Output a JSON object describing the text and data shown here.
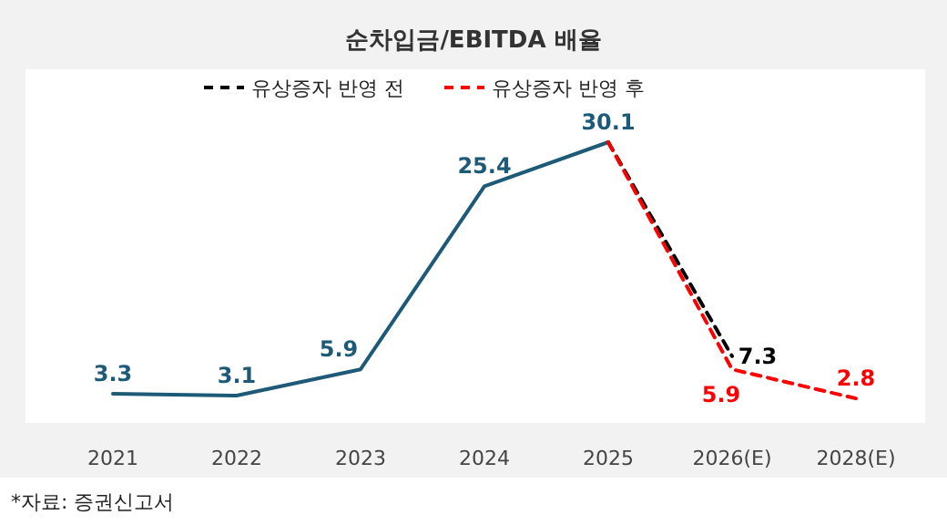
{
  "chart_data": {
    "type": "line",
    "title": "순차입금/EBITDA 배율",
    "categories": [
      "2021",
      "2022",
      "2023",
      "2024",
      "2025",
      "2026(E)",
      "2028(E)"
    ],
    "series": [
      {
        "color": "#1d5a78",
        "line_style": "solid",
        "values": [
          3.3,
          3.1,
          5.9,
          25.4,
          30.1,
          null,
          null
        ],
        "value_labels": [
          "3.3",
          "3.1",
          "5.9",
          "25.4",
          "30.1",
          null,
          null
        ]
      },
      {
        "name": "유상증자 반영 전",
        "color": "#000000",
        "line_style": "dashed",
        "values": [
          null,
          null,
          null,
          null,
          30.1,
          7.3,
          null
        ],
        "value_labels": [
          null,
          null,
          null,
          null,
          null,
          "7.3",
          null
        ]
      },
      {
        "name": "유상증자 반영 후",
        "color": "#ff0000",
        "line_style": "dashed",
        "values": [
          null,
          null,
          null,
          null,
          30.1,
          5.9,
          2.8
        ],
        "value_labels": [
          null,
          null,
          null,
          null,
          null,
          "5.9",
          "2.8"
        ]
      }
    ],
    "legend": "top",
    "grid": false,
    "marker": "none",
    "annotations": [
      "*자료: 증권신고서"
    ]
  }
}
